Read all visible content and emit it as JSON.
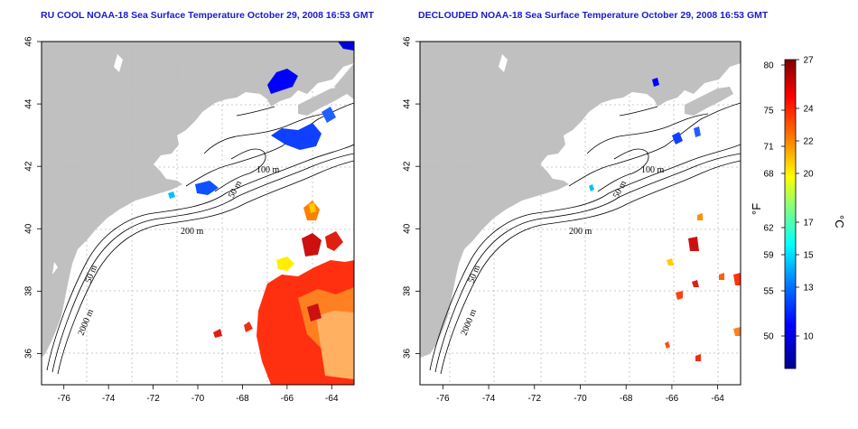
{
  "panels": [
    {
      "id": "left",
      "title": "RU COOL NOAA-18 Sea Surface Temperature October 29, 2008 16:53 GMT",
      "x_ticks": [
        "-76",
        "-74",
        "-72",
        "-70",
        "-68",
        "-66",
        "-64"
      ],
      "y_ticks": [
        "36",
        "38",
        "40",
        "42",
        "44",
        "46"
      ],
      "contour_labels": [
        "100 m",
        "50 m",
        "200 m",
        "50 m",
        "2000 m"
      ]
    },
    {
      "id": "right",
      "title": "DECLOUDED NOAA-18 Sea Surface Temperature October 29, 2008 16:53 GMT",
      "x_ticks": [
        "-76",
        "-74",
        "-72",
        "-70",
        "-68",
        "-66",
        "-64"
      ],
      "y_ticks": [
        "36",
        "38",
        "40",
        "42",
        "44",
        "46"
      ],
      "contour_labels": [
        "100 m",
        "50 m",
        "200 m",
        "50 m",
        "2000 m"
      ]
    }
  ],
  "map_extent": {
    "lon": [
      -77,
      -63
    ],
    "lat": [
      35,
      46
    ]
  },
  "colorbar": {
    "fahrenheit_label": "°F",
    "celsius_label": "°C",
    "fahrenheit_ticks": [
      "80",
      "75",
      "71",
      "68",
      "62",
      "59",
      "55",
      "50"
    ],
    "celsius_ticks": [
      "27",
      "24",
      "22",
      "20",
      "17",
      "15",
      "13",
      "10"
    ],
    "range_c": [
      8,
      27
    ],
    "colors": [
      "#00008f",
      "#0000ff",
      "#0080ff",
      "#00ffff",
      "#80ff80",
      "#ffff00",
      "#ff8000",
      "#ff0000",
      "#800000"
    ]
  },
  "colors": {
    "land": "#c0c0c0",
    "ocean": "#ffffff",
    "title": "#1a1acc",
    "grid": "#bbbbbb"
  }
}
